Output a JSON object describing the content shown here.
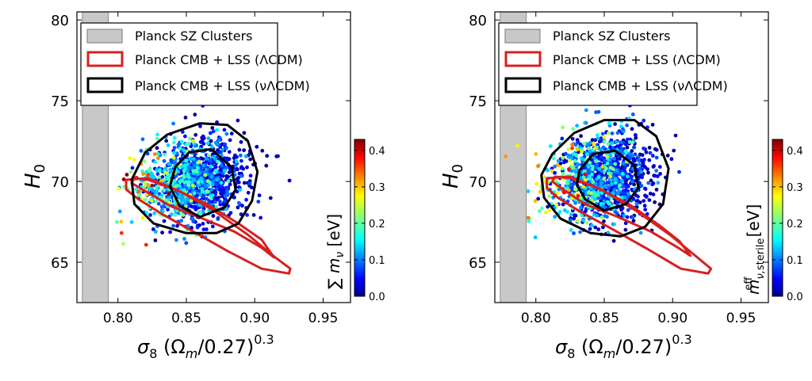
{
  "chart_data": [
    {
      "type": "scatter",
      "xlabel_main": "σ",
      "xlabel_sub": "8",
      "xlabel_mid": " (Ω",
      "xlabel_sub2": "m",
      "xlabel_tail": "/0.27)",
      "xlabel_sup": "0.3",
      "ylabel_main": "H",
      "ylabel_sub": "0",
      "xlim": [
        0.77,
        0.97
      ],
      "ylim": [
        62.5,
        80.5
      ],
      "xticks": [
        "0.80",
        "0.85",
        "0.90",
        "0.95"
      ],
      "xtick_values": [
        0.8,
        0.85,
        0.9,
        0.95
      ],
      "yticks": [
        "65",
        "70",
        "75",
        "80"
      ],
      "ytick_values": [
        65,
        70,
        75,
        80
      ],
      "grid": false,
      "legend_position": "top-left",
      "legend": [
        {
          "label": "Planck SZ Clusters",
          "style": "patch",
          "color": "#c8c8c8"
        },
        {
          "label": "Planck CMB + LSS (ΛCDM)",
          "style": "contour",
          "color": "#d62020"
        },
        {
          "label": "Planck CMB + LSS (νΛCDM)",
          "style": "contour",
          "color": "#000000"
        }
      ],
      "sz_band_x": [
        0.774,
        0.793
      ],
      "colorbar": {
        "label": "∑ m_ν [eV]",
        "range": [
          0.0,
          0.43
        ],
        "ticks": [
          "0.0",
          "0.1",
          "0.2",
          "0.3",
          "0.4"
        ],
        "tick_values": [
          0.0,
          0.1,
          0.2,
          0.3,
          0.4
        ],
        "colormap": "jet"
      },
      "lcdm_contours": [
        [
          [
            0.812,
            70.2
          ],
          [
            0.822,
            70.1
          ],
          [
            0.842,
            69.5
          ],
          [
            0.865,
            68.6
          ],
          [
            0.888,
            67.4
          ],
          [
            0.905,
            66.4
          ],
          [
            0.914,
            65.3
          ],
          [
            0.905,
            65.9
          ],
          [
            0.885,
            66.9
          ],
          [
            0.862,
            67.7
          ],
          [
            0.838,
            68.5
          ],
          [
            0.82,
            69.4
          ],
          [
            0.81,
            69.9
          ],
          [
            0.812,
            70.2
          ]
        ],
        [
          [
            0.806,
            70.1
          ],
          [
            0.822,
            70.2
          ],
          [
            0.845,
            69.4
          ],
          [
            0.87,
            68.2
          ],
          [
            0.895,
            66.7
          ],
          [
            0.915,
            65.3
          ],
          [
            0.926,
            64.6
          ],
          [
            0.925,
            64.3
          ],
          [
            0.905,
            64.6
          ],
          [
            0.88,
            65.7
          ],
          [
            0.855,
            66.9
          ],
          [
            0.832,
            68.0
          ],
          [
            0.815,
            68.9
          ],
          [
            0.806,
            69.5
          ],
          [
            0.806,
            70.1
          ]
        ]
      ],
      "nulcdm_contours": [
        [
          [
            0.842,
            70.9
          ],
          [
            0.852,
            71.8
          ],
          [
            0.868,
            72.0
          ],
          [
            0.883,
            70.9
          ],
          [
            0.886,
            69.5
          ],
          [
            0.878,
            68.4
          ],
          [
            0.86,
            67.8
          ],
          [
            0.845,
            68.5
          ],
          [
            0.838,
            69.7
          ],
          [
            0.842,
            70.9
          ]
        ],
        [
          [
            0.82,
            71.8
          ],
          [
            0.836,
            72.9
          ],
          [
            0.86,
            73.6
          ],
          [
            0.88,
            73.5
          ],
          [
            0.895,
            72.5
          ],
          [
            0.902,
            70.6
          ],
          [
            0.898,
            68.8
          ],
          [
            0.888,
            67.4
          ],
          [
            0.872,
            66.8
          ],
          [
            0.85,
            66.8
          ],
          [
            0.826,
            67.4
          ],
          [
            0.812,
            68.6
          ],
          [
            0.81,
            70.1
          ],
          [
            0.82,
            71.8
          ]
        ]
      ],
      "scatter_points": 1200,
      "scatter_center": [
        0.866,
        70.2
      ],
      "seed": 11
    },
    {
      "type": "scatter",
      "xlabel_main": "σ",
      "xlabel_sub": "8",
      "xlabel_mid": " (Ω",
      "xlabel_sub2": "m",
      "xlabel_tail": "/0.27)",
      "xlabel_sup": "0.3",
      "ylabel_main": "H",
      "ylabel_sub": "0",
      "xlim": [
        0.77,
        0.97
      ],
      "ylim": [
        62.5,
        80.5
      ],
      "xticks": [
        "0.80",
        "0.85",
        "0.90",
        "0.95"
      ],
      "xtick_values": [
        0.8,
        0.85,
        0.9,
        0.95
      ],
      "yticks": [
        "65",
        "70",
        "75",
        "80"
      ],
      "ytick_values": [
        65,
        70,
        75,
        80
      ],
      "grid": false,
      "legend_position": "top-left",
      "legend": [
        {
          "label": "Planck SZ Clusters",
          "style": "patch",
          "color": "#c8c8c8"
        },
        {
          "label": "Planck CMB + LSS (ΛCDM)",
          "style": "contour",
          "color": "#d62020"
        },
        {
          "label": "Planck CMB + LSS (νΛCDM)",
          "style": "contour",
          "color": "#000000"
        }
      ],
      "sz_band_x": [
        0.774,
        0.793
      ],
      "colorbar": {
        "label": "m^eff_ν,sterile [eV]",
        "range": [
          0.0,
          0.43
        ],
        "ticks": [
          "0.0",
          "0.1",
          "0.2",
          "0.3",
          "0.4"
        ],
        "tick_values": [
          0.0,
          0.1,
          0.2,
          0.3,
          0.4
        ],
        "colormap": "jet"
      },
      "lcdm_contours": [
        [
          [
            0.814,
            70.3
          ],
          [
            0.825,
            70.2
          ],
          [
            0.845,
            69.6
          ],
          [
            0.868,
            68.6
          ],
          [
            0.89,
            67.3
          ],
          [
            0.905,
            66.3
          ],
          [
            0.913,
            65.4
          ],
          [
            0.904,
            65.9
          ],
          [
            0.884,
            66.9
          ],
          [
            0.86,
            67.8
          ],
          [
            0.836,
            68.6
          ],
          [
            0.82,
            69.5
          ],
          [
            0.812,
            70.0
          ],
          [
            0.814,
            70.3
          ]
        ],
        [
          [
            0.808,
            70.2
          ],
          [
            0.825,
            70.3
          ],
          [
            0.848,
            69.5
          ],
          [
            0.873,
            68.2
          ],
          [
            0.898,
            66.7
          ],
          [
            0.918,
            65.3
          ],
          [
            0.928,
            64.6
          ],
          [
            0.926,
            64.3
          ],
          [
            0.906,
            64.6
          ],
          [
            0.882,
            65.8
          ],
          [
            0.857,
            67.0
          ],
          [
            0.833,
            68.1
          ],
          [
            0.816,
            69.0
          ],
          [
            0.808,
            69.6
          ],
          [
            0.808,
            70.2
          ]
        ]
      ],
      "nulcdm_contours": [
        [
          [
            0.832,
            70.7
          ],
          [
            0.842,
            71.7
          ],
          [
            0.858,
            71.9
          ],
          [
            0.872,
            71.0
          ],
          [
            0.875,
            69.6
          ],
          [
            0.866,
            68.6
          ],
          [
            0.85,
            68.2
          ],
          [
            0.836,
            68.9
          ],
          [
            0.83,
            69.8
          ],
          [
            0.832,
            70.7
          ]
        ],
        [
          [
            0.812,
            71.7
          ],
          [
            0.828,
            73.0
          ],
          [
            0.85,
            73.8
          ],
          [
            0.872,
            73.8
          ],
          [
            0.888,
            72.8
          ],
          [
            0.897,
            70.8
          ],
          [
            0.893,
            68.6
          ],
          [
            0.88,
            67.2
          ],
          [
            0.862,
            66.6
          ],
          [
            0.84,
            66.8
          ],
          [
            0.818,
            67.7
          ],
          [
            0.806,
            69.0
          ],
          [
            0.804,
            70.4
          ],
          [
            0.812,
            71.7
          ]
        ]
      ],
      "scatter_points": 1200,
      "scatter_center": [
        0.858,
        70.3
      ],
      "seed": 23
    }
  ]
}
